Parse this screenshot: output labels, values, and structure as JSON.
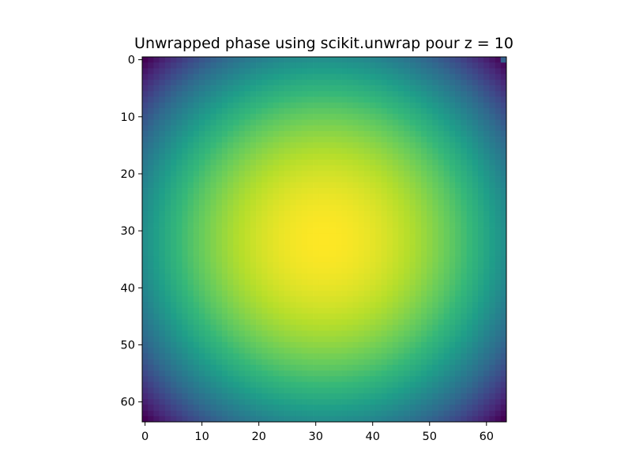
{
  "chart_data": {
    "type": "heatmap",
    "title": "Unwrapped phase using scikit.unwrap pour z = 10",
    "xlabel": "",
    "ylabel": "",
    "colormap": "viridis",
    "shape": [
      64,
      64
    ],
    "xlim": [
      -0.5,
      63.5
    ],
    "ylim": [
      63.5,
      -0.5
    ],
    "y_axis_inverted": true,
    "x_ticks": [
      0,
      10,
      20,
      30,
      40,
      50,
      60
    ],
    "y_ticks": [
      0,
      10,
      20,
      30,
      40,
      50,
      60
    ],
    "x_tick_labels": [
      "0",
      "10",
      "20",
      "30",
      "40",
      "50",
      "60"
    ],
    "y_tick_labels": [
      "0",
      "10",
      "20",
      "30",
      "40",
      "50",
      "60"
    ],
    "value_model": {
      "form": "radial paraboloid",
      "center": [
        31.5,
        31.5
      ],
      "normalized_min_at_corners": 0.0,
      "normalized_max_at_center": 1.0
    },
    "anomaly_pixel": {
      "row": 0,
      "col": 63,
      "normalized_value": 0.3
    },
    "colors": {
      "viridis_stops": [
        "#440154",
        "#482878",
        "#3e4989",
        "#31688e",
        "#26828e",
        "#1f9e89",
        "#35b779",
        "#6ece58",
        "#b5de2b",
        "#fde725"
      ],
      "axis_color": "#000000",
      "background": "#ffffff"
    }
  }
}
